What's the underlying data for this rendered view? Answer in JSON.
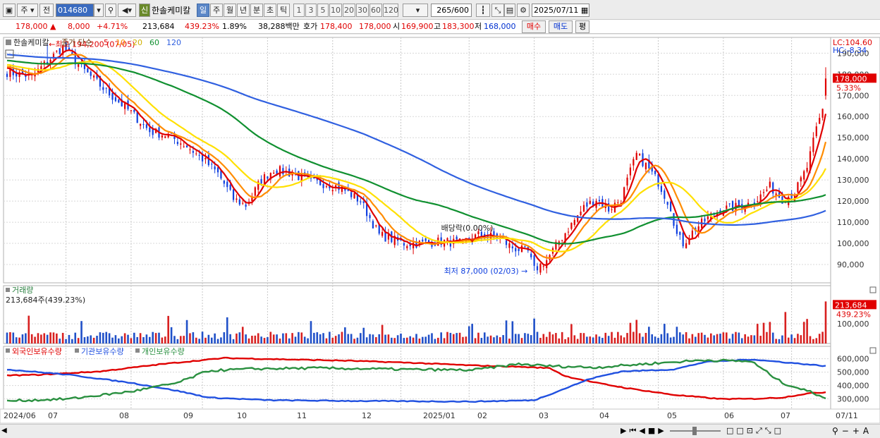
{
  "toolbar": {
    "type": "주",
    "mode": "전",
    "code": "014680",
    "name_badge": "신",
    "name": "한솔케미칼",
    "periods": [
      "일",
      "주",
      "월",
      "년",
      "분",
      "초",
      "틱"
    ],
    "minutes": [
      "1",
      "3",
      "5",
      "10",
      "20",
      "30",
      "60",
      "120"
    ],
    "count": "265",
    "count_max": "/600",
    "date": "2025/07/11"
  },
  "quote": {
    "price": "178,000 ▲",
    "change": "8,000",
    "change_pct": "+4.71%",
    "volume": "213,684",
    "volume_ratio": "439.23%",
    "turnover": "1.89%",
    "amount": "38,288백만",
    "ask_label": "호가",
    "ask": "178,400",
    "bid": "178,000",
    "open_label": "시",
    "open": "169,900",
    "high_label": "고",
    "high": "183,300",
    "low_label": "저",
    "low": "168,000",
    "buy": "매수",
    "sell": "매도",
    "eval": "평"
  },
  "price_panel": {
    "stock": "한솔케미칼",
    "ma_prefix": "종가 단순",
    "ma_periods": [
      "5",
      "10",
      "20",
      "60",
      "120"
    ],
    "ma_colors": [
      "#e00000",
      "#ff8c00",
      "#ffe000",
      "#109030",
      "#3060e0"
    ],
    "lc": "LC:104.60",
    "hc": "HC:-8.34",
    "last_price": "178,000",
    "last_pct": "5.33%",
    "ann_high": "←최고 194,200 (07/05)",
    "ann_low": "최저 87,000 (02/03) →",
    "ann_div": "배당락(0.00%)",
    "yticks": [
      "190,000",
      "180,000",
      "170,000",
      "160,000",
      "150,000",
      "140,000",
      "130,000",
      "120,000",
      "110,000",
      "100,000",
      "90,000"
    ]
  },
  "volume_panel": {
    "title": "거래량",
    "value": "213,684주(439.23%)",
    "last_value": "213,684",
    "last_pct": "439.23%",
    "ytick": "100,000"
  },
  "holding_panel": {
    "series": [
      "외국인보유수량",
      "기관보유수량",
      "개인보유수량"
    ],
    "colors": [
      "#e00000",
      "#2050e0",
      "#2a9040"
    ],
    "yticks": [
      "600,000",
      "500,000",
      "400,000",
      "300,000"
    ]
  },
  "xaxis": [
    "2024/06",
    "07",
    "08",
    "09",
    "10",
    "11",
    "12",
    "2025/01",
    "02",
    "03",
    "04",
    "05",
    "06",
    "07",
    "07/11"
  ]
}
